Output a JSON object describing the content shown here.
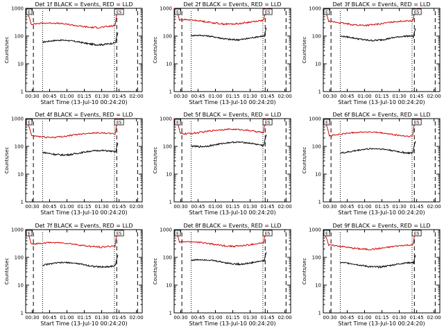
{
  "colors": {
    "events": "#000000",
    "lld": "#d40000",
    "axes": "#000000",
    "background": "#ffffff"
  },
  "chart_data": [
    {
      "type": "line",
      "title": "Det 1f BLACK = Events, RED = LLD",
      "xlabel": "Start Time (13-Jul-10 00:24:20)",
      "ylabel": "Counts/sec",
      "yscale": "log",
      "ylim": [
        1,
        1000
      ],
      "xlim": [
        "00:24:20",
        "02:05"
      ],
      "xticks": [
        "00:30",
        "00:45",
        "01:00",
        "01:15",
        "01:30",
        "01:45",
        "02:00"
      ],
      "yticks": [
        "1",
        "10",
        "100",
        "1000"
      ],
      "vlines_dashed": [
        "00:31",
        "01:43",
        "02:01"
      ],
      "vlines_dotted": [
        "00:39",
        "01:41"
      ],
      "markers": [
        {
          "label": "E",
          "x": "00:24:20"
        },
        {
          "label": "ES",
          "x": "01:45"
        }
      ],
      "series": [
        {
          "name": "BLACK = Events",
          "color": "#000000",
          "x_start": "00:39",
          "x_end": "01:44",
          "level": 60
        },
        {
          "name": "RED = LLD",
          "color": "#d40000",
          "x_start": "00:24:20",
          "x_end": "01:45",
          "level": 250
        }
      ]
    },
    {
      "type": "line",
      "title": "Det 2f BLACK = Events, RED = LLD",
      "xlabel": "Start Time (13-Jul-10 00:24:20)",
      "ylabel": "Counts/sec",
      "yscale": "log",
      "ylim": [
        1,
        1000
      ],
      "xlim": [
        "00:24:20",
        "02:05"
      ],
      "xticks": [
        "00:30",
        "00:45",
        "01:00",
        "01:15",
        "01:30",
        "01:45",
        "02:00"
      ],
      "yticks": [
        "1",
        "10",
        "100",
        "1000"
      ],
      "vlines_dashed": [
        "00:31",
        "01:43",
        "02:01"
      ],
      "vlines_dotted": [
        "00:39",
        "01:41"
      ],
      "markers": [
        {
          "label": "E",
          "x": "00:24:20"
        },
        {
          "label": "ES",
          "x": "01:45"
        }
      ],
      "series": [
        {
          "name": "BLACK = Events",
          "color": "#000000",
          "x_start": "00:39",
          "x_end": "01:44",
          "level": 90
        },
        {
          "name": "RED = LLD",
          "color": "#d40000",
          "x_start": "00:24:20",
          "x_end": "01:45",
          "level": 330
        }
      ]
    },
    {
      "type": "line",
      "title": "Det 3f BLACK = Events, RED = LLD",
      "xlabel": "Start Time (13-Jul-10 00:24:20)",
      "ylabel": "Counts/sec",
      "yscale": "log",
      "ylim": [
        1,
        1000
      ],
      "xlim": [
        "00:24:20",
        "02:05"
      ],
      "xticks": [
        "00:30",
        "00:45",
        "01:00",
        "01:15",
        "01:30",
        "01:45",
        "02:00"
      ],
      "yticks": [
        "1",
        "10",
        "100",
        "1000"
      ],
      "vlines_dashed": [
        "00:31",
        "01:43",
        "02:01"
      ],
      "vlines_dotted": [
        "00:39",
        "01:41"
      ],
      "markers": [
        {
          "label": "E",
          "x": "00:24:20"
        },
        {
          "label": "ES",
          "x": "01:45"
        }
      ],
      "series": [
        {
          "name": "BLACK = Events",
          "color": "#000000",
          "x_start": "00:39",
          "x_end": "01:44",
          "level": 85
        },
        {
          "name": "RED = LLD",
          "color": "#d40000",
          "x_start": "00:24:20",
          "x_end": "01:45",
          "level": 300
        }
      ]
    },
    {
      "type": "line",
      "title": "Det 4f BLACK = Events, RED = LLD",
      "xlabel": "Start Time (13-Jul-10 00:24:20)",
      "ylabel": "Counts/sec",
      "yscale": "log",
      "ylim": [
        1,
        1000
      ],
      "xlim": [
        "00:24:20",
        "02:05"
      ],
      "xticks": [
        "00:30",
        "00:45",
        "01:00",
        "01:15",
        "01:30",
        "01:45",
        "02:00"
      ],
      "yticks": [
        "1",
        "10",
        "100",
        "1000"
      ],
      "vlines_dashed": [
        "00:31",
        "01:43",
        "02:01"
      ],
      "vlines_dotted": [
        "00:39",
        "01:41"
      ],
      "markers": [
        {
          "label": "E",
          "x": "00:24:20"
        },
        {
          "label": "ES",
          "x": "01:45"
        }
      ],
      "series": [
        {
          "name": "BLACK = Events",
          "color": "#000000",
          "x_start": "00:39",
          "x_end": "01:44",
          "level": 60
        },
        {
          "name": "RED = LLD",
          "color": "#d40000",
          "x_start": "00:24:20",
          "x_end": "01:45",
          "level": 260
        }
      ]
    },
    {
      "type": "line",
      "title": "Det 5f BLACK = Events, RED = LLD",
      "xlabel": "Start Time (13-Jul-10 00:24:20)",
      "ylabel": "Counts/sec",
      "yscale": "log",
      "ylim": [
        1,
        1000
      ],
      "xlim": [
        "00:24:20",
        "02:05"
      ],
      "xticks": [
        "00:30",
        "00:45",
        "01:00",
        "01:15",
        "01:30",
        "01:45",
        "02:00"
      ],
      "yticks": [
        "1",
        "10",
        "100",
        "1000"
      ],
      "vlines_dashed": [
        "00:31",
        "01:43",
        "02:01"
      ],
      "vlines_dotted": [
        "00:39",
        "01:41"
      ],
      "markers": [
        {
          "label": "E",
          "x": "00:24:20"
        },
        {
          "label": "ES",
          "x": "01:45"
        }
      ],
      "series": [
        {
          "name": "BLACK = Events",
          "color": "#000000",
          "x_start": "00:39",
          "x_end": "01:44",
          "level": 120
        },
        {
          "name": "RED = LLD",
          "color": "#d40000",
          "x_start": "00:24:20",
          "x_end": "01:45",
          "level": 350
        }
      ]
    },
    {
      "type": "line",
      "title": "Det 6f BLACK = Events, RED = LLD",
      "xlabel": "Start Time (13-Jul-10 00:24:20)",
      "ylabel": "Counts/sec",
      "yscale": "log",
      "ylim": [
        1,
        1000
      ],
      "xlim": [
        "00:24:20",
        "02:05"
      ],
      "xticks": [
        "00:30",
        "00:45",
        "01:00",
        "01:15",
        "01:30",
        "01:45",
        "02:00"
      ],
      "yticks": [
        "1",
        "10",
        "100",
        "1000"
      ],
      "vlines_dashed": [
        "00:31",
        "01:43",
        "02:01"
      ],
      "vlines_dotted": [
        "00:39",
        "01:41"
      ],
      "markers": [
        {
          "label": "E",
          "x": "00:24:20"
        },
        {
          "label": "ES",
          "x": "01:45"
        }
      ],
      "series": [
        {
          "name": "BLACK = Events",
          "color": "#000000",
          "x_start": "00:39",
          "x_end": "01:44",
          "level": 70
        },
        {
          "name": "RED = LLD",
          "color": "#d40000",
          "x_start": "00:24:20",
          "x_end": "01:45",
          "level": 280
        }
      ]
    },
    {
      "type": "line",
      "title": "Det 7f BLACK = Events, RED = LLD",
      "xlabel": "Start Time (13-Jul-10 00:24:20)",
      "ylabel": "Counts/sec",
      "yscale": "log",
      "ylim": [
        1,
        1000
      ],
      "xlim": [
        "00:24:20",
        "02:05"
      ],
      "xticks": [
        "00:30",
        "00:45",
        "01:00",
        "01:15",
        "01:30",
        "01:45",
        "02:00"
      ],
      "yticks": [
        "1",
        "10",
        "100",
        "1000"
      ],
      "vlines_dashed": [
        "00:31",
        "01:43",
        "02:01"
      ],
      "vlines_dotted": [
        "00:39",
        "01:41"
      ],
      "markers": [
        {
          "label": "E",
          "x": "00:24:20"
        },
        {
          "label": "ES",
          "x": "01:45"
        }
      ],
      "series": [
        {
          "name": "BLACK = Events",
          "color": "#000000",
          "x_start": "00:39",
          "x_end": "01:44",
          "level": 55
        },
        {
          "name": "RED = LLD",
          "color": "#d40000",
          "x_start": "00:24:20",
          "x_end": "01:45",
          "level": 290
        }
      ]
    },
    {
      "type": "line",
      "title": "Det 8f BLACK = Events, RED = LLD",
      "xlabel": "Start Time (13-Jul-10 00:24:20)",
      "ylabel": "Counts/sec",
      "yscale": "log",
      "ylim": [
        1,
        1000
      ],
      "xlim": [
        "00:24:20",
        "02:05"
      ],
      "xticks": [
        "00:30",
        "00:45",
        "01:00",
        "01:15",
        "01:30",
        "01:45",
        "02:00"
      ],
      "yticks": [
        "1",
        "10",
        "100",
        "1000"
      ],
      "vlines_dashed": [
        "00:31",
        "01:43",
        "02:01"
      ],
      "vlines_dotted": [
        "00:39",
        "01:41"
      ],
      "markers": [
        {
          "label": "E",
          "x": "00:24:20"
        },
        {
          "label": "ES",
          "x": "01:45"
        }
      ],
      "series": [
        {
          "name": "BLACK = Events",
          "color": "#000000",
          "x_start": "00:39",
          "x_end": "01:44",
          "level": 70
        },
        {
          "name": "RED = LLD",
          "color": "#d40000",
          "x_start": "00:24:20",
          "x_end": "01:45",
          "level": 310
        }
      ]
    },
    {
      "type": "line",
      "title": "Det 9f BLACK = Events, RED = LLD",
      "xlabel": "Start Time (13-Jul-10 00:24:20)",
      "ylabel": "Counts/sec",
      "yscale": "log",
      "ylim": [
        1,
        1000
      ],
      "xlim": [
        "00:24:20",
        "02:05"
      ],
      "xticks": [
        "00:30",
        "00:45",
        "01:00",
        "01:15",
        "01:30",
        "01:45",
        "02:00"
      ],
      "yticks": [
        "1",
        "10",
        "100",
        "1000"
      ],
      "vlines_dashed": [
        "00:31",
        "01:43",
        "02:01"
      ],
      "vlines_dotted": [
        "00:39",
        "01:41"
      ],
      "markers": [
        {
          "label": "E",
          "x": "00:24:20"
        },
        {
          "label": "ES",
          "x": "01:45"
        }
      ],
      "series": [
        {
          "name": "BLACK = Events",
          "color": "#000000",
          "x_start": "00:39",
          "x_end": "01:44",
          "level": 55
        },
        {
          "name": "RED = LLD",
          "color": "#d40000",
          "x_start": "00:24:20",
          "x_end": "01:45",
          "level": 240
        }
      ]
    }
  ]
}
